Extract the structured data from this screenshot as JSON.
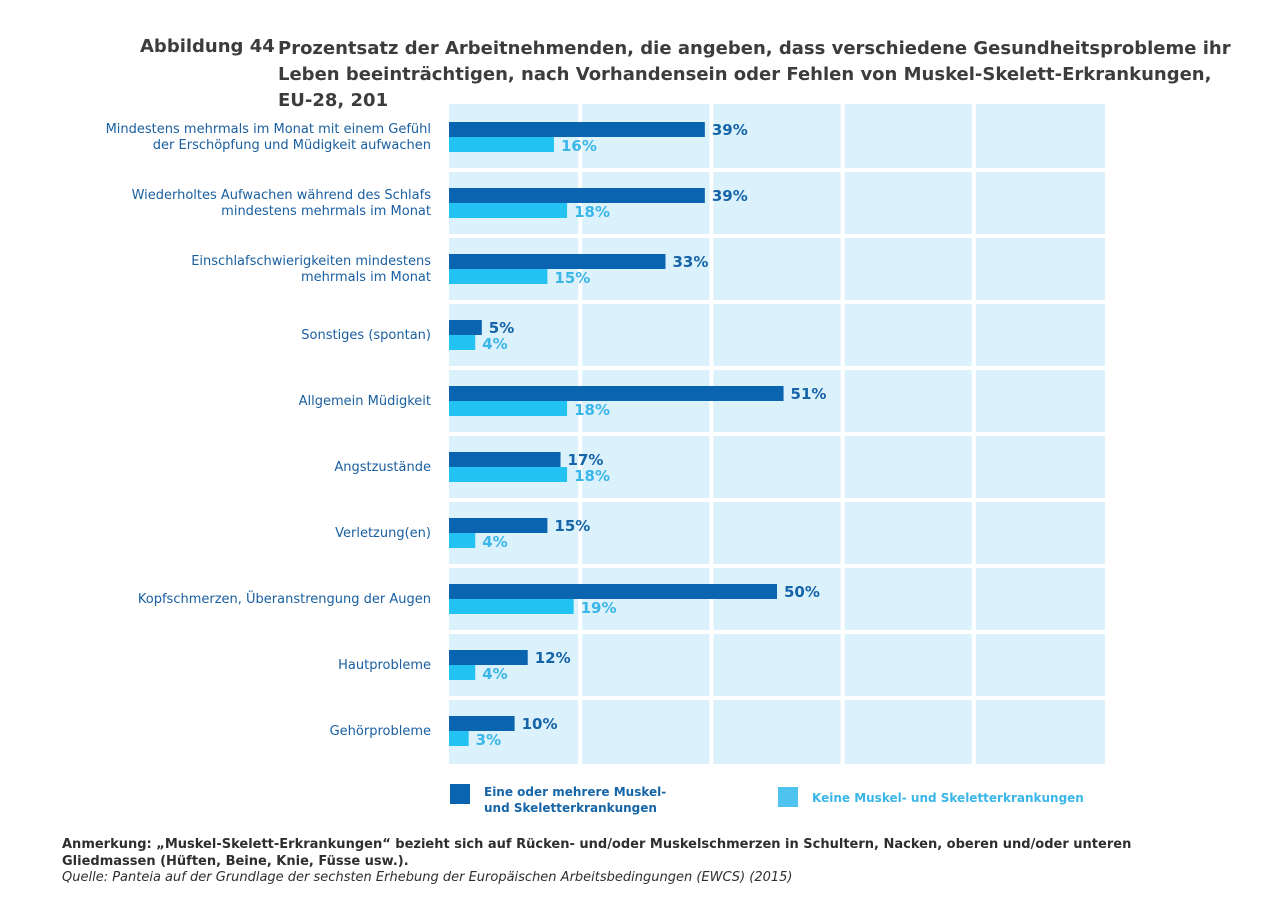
{
  "figure": {
    "number": "Abbildung 44",
    "title": "Prozentsatz der Arbeitnehmenden, die angeben, dass verschiedene Gesundheitsprobleme ihr Leben beeinträchtigen, nach Vorhandensein oder Fehlen von Muskel-Skelett-Erkrankungen, EU-28, 201"
  },
  "chart_data": {
    "type": "bar",
    "orientation": "horizontal",
    "categories": [
      [
        "Mindestens mehrmals im Monat mit einem Gefühl",
        "der Erschöpfung und Müdigkeit aufwachen"
      ],
      [
        "Wiederholtes Aufwachen während des Schlafs",
        "mindestens mehrmals im Monat"
      ],
      [
        "Einschlafschwierigkeiten mindestens",
        "mehrmals im Monat"
      ],
      [
        "Sonstiges (spontan)"
      ],
      [
        "Allgemein Müdigkeit"
      ],
      [
        "Angstzustände"
      ],
      [
        "Verletzung(en)"
      ],
      [
        "Kopfschmerzen, Überanstrengung der Augen"
      ],
      [
        "Hautprobleme"
      ],
      [
        "Gehörprobleme"
      ]
    ],
    "series": [
      {
        "name": "Eine oder mehrere Muskel- und Skeletterkrankungen",
        "color": "#0a64b0",
        "values": [
          39,
          39,
          33,
          5,
          51,
          17,
          15,
          50,
          12,
          10
        ],
        "labels": [
          "39%",
          "39%",
          "33%",
          "5%",
          "51%",
          "17%",
          "15%",
          "50%",
          "12%",
          "10%"
        ]
      },
      {
        "name": "Keine Muskel- und Skeletterkrankungen",
        "color": "#22c3f3",
        "values": [
          16,
          18,
          15,
          4,
          18,
          18,
          4,
          19,
          4,
          3
        ],
        "labels": [
          "16%",
          "18%",
          "15%",
          "4%",
          "18%",
          "18%",
          "4%",
          "19%",
          "4%",
          "3%"
        ]
      }
    ],
    "xlim": [
      0,
      100
    ],
    "grid": true,
    "legend_position": "bottom",
    "background_color": "#dbf1fc"
  },
  "legend": {
    "item1": "Eine oder mehrere Muskel- und Skeletterkrankungen",
    "item2": "Keine Muskel- und Skeletterkrankungen"
  },
  "footer": {
    "note": "Anmerkung: „Muskel-Skelett-Erkrankungen“ bezieht sich auf Rücken- und/oder Muskelschmerzen in Schultern, Nacken, oberen und/oder unteren Gliedmassen (Hüften, Beine, Knie, Füsse usw.).",
    "source": "Quelle: Panteia auf der Grundlage der sechsten Erhebung der Europäischen Arbeitsbedingungen (EWCS) (2015)"
  }
}
